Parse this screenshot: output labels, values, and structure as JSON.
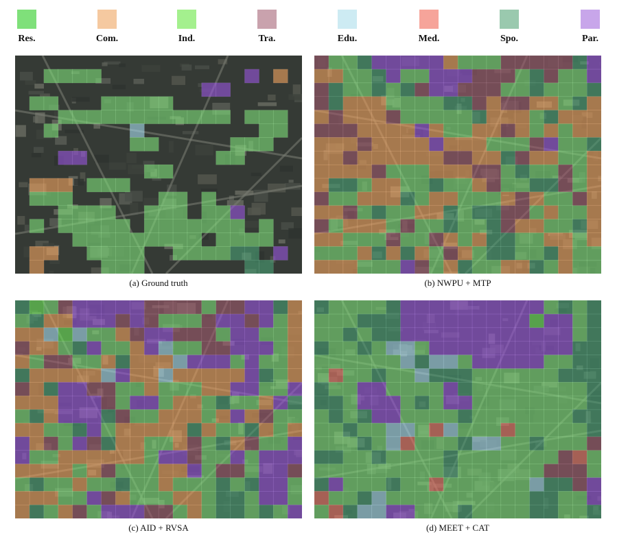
{
  "legend": {
    "items": [
      {
        "key": "res",
        "label": "Res.",
        "color": "#7fe07a"
      },
      {
        "key": "com",
        "label": "Com.",
        "color": "#f2a35f"
      },
      {
        "key": "ind",
        "label": "Ind.",
        "color": "#6ee85a"
      },
      {
        "key": "tra",
        "label": "Tra.",
        "color": "#a05a6e"
      },
      {
        "key": "edu",
        "label": "Edu.",
        "color": "#a8def0"
      },
      {
        "key": "med",
        "label": "Med.",
        "color": "#f07a6a"
      },
      {
        "key": "spo",
        "label": "Spo.",
        "color": "#4aa074"
      },
      {
        "key": "par",
        "label": "Par.",
        "color": "#9a55e0"
      }
    ]
  },
  "panels": [
    {
      "key": "gt",
      "caption": "(a) Ground truth",
      "grid": [
        "....................",
        "..RRRR..........P.C.",
        ".............PP.....",
        ".RR...RRRRR.........",
        "...RRRRRRRRRRRR.RRR.",
        "..R.....E........RR.",
        "........RR.....RRR..",
        "...PP.........RR....",
        ".........RR.........",
        ".CCC.RRR............",
        ".RRR......RR.R......",
        "...RRRR..RRR.RRP....",
        ".R.RRRRR.RRRRRRR.R..",
        "....RRRRRRRRR.RRRR..",
        ".CC..RRRR..RRRRSS.P.",
        ".C....RRR.......SS.."
      ]
    },
    {
      "key": "nwpu",
      "caption": "(b) NWPU + MTP",
      "grid": [
        "TRRSPPPPPCRRRTTTTTSP",
        "CCRRSPRRPPPTTTRSTRRP",
        "TSRRSRSTPPTTTRRSRRRS",
        "TSCCCRRRRSSTCTTCCRSC",
        "CTCCCTRRRRRSCCCRSCCC",
        "TTTCCCCPCRRCCTCRCRCC",
        "CCCTCCCCPCCCRRRTPRRS",
        "CCTCCCCCCTTCCSTCCRRC",
        "CCCCTRRRCCCTTRSRRTRC",
        "CSSRCCRRSRRCTRRSSTRC",
        "TRRCCCSRCCRRRCTCRRTC",
        "CCTRSRRCCSRSSTTRCRRC",
        "TRCCCRTRRSRRSTCCRRSC",
        "CCRRRTRRTCRCSSRRCCRC",
        "RRRCSCSCRTCRSSRRSCRR",
        "CCCRRRPTRCSRRCCSRCRR"
      ]
    },
    {
      "key": "aid",
      "caption": "(c) AID + RVSA",
      "grid": [
        "SIRTPPPPPTTTTRTTPPSC",
        "RSCCPPPTPTRRRTPPTPRC",
        "CCEIERRCTPPTTTRPPRRC",
        "TCCRSPRRCPERRTTPPPRC",
        "CRTTRRCSCCCEPPPRPRRC",
        "SCCCCCEPCCECCCCCPSRC",
        "TCSPPTTRRCRRRCCPPRRP",
        "CCCPPPTRPPRCCRSRRCPS",
        "RSCPPPSTRRCCCRCPCTRR",
        "CCRRSPRCCCCCSCRRSCRC",
        "PCTRPTSCCRRCTRSCTRRP",
        "PRRCCCCCCRPPTRRPRPPP",
        "CCCCRCTRRRCCPRTTRPPT",
        "RSRRCRRSRRCRRRSRSPPR",
        "CCCRRPTCRRRCCRSSRPPR",
        "CSRCTRPPPTTRCRSSRSRP"
      ]
    },
    {
      "key": "meet",
      "caption": "(d) MEET + CAT",
      "grid": [
        "SRRRRSPPPPPPPPPPRSRS",
        "RRRSSSPPPPPPPPPIPPRS",
        "RRSRSSPPPPPPPPPPPPRS",
        "SRRSREERPPPPPPPPPPSS",
        "RRRRRRESEERPPPPPRRSS",
        "RMRRSRRESSSRRRRRRSSS",
        "SRRPPRRRRPSRRRRRRRRS",
        "SSRPPPRSRPPRRRRRRRRS",
        "RSRSPPRRRRSRRRRRRRSS",
        "RRSRREERMERRRMRRRRRS",
        "RRRSREMRRRSEERRSRRRT",
        "SSRRSRRRRSRRRRRRRTMR",
        "RRRRRRRRRSRRRRRRTTTR",
        "SPRRRSRRMRRRRRRESSTP",
        "MRRSERRRRRRRRRRSSRRP",
        "RMSEEPPRRRSRRRRSSRRS"
      ]
    }
  ]
}
